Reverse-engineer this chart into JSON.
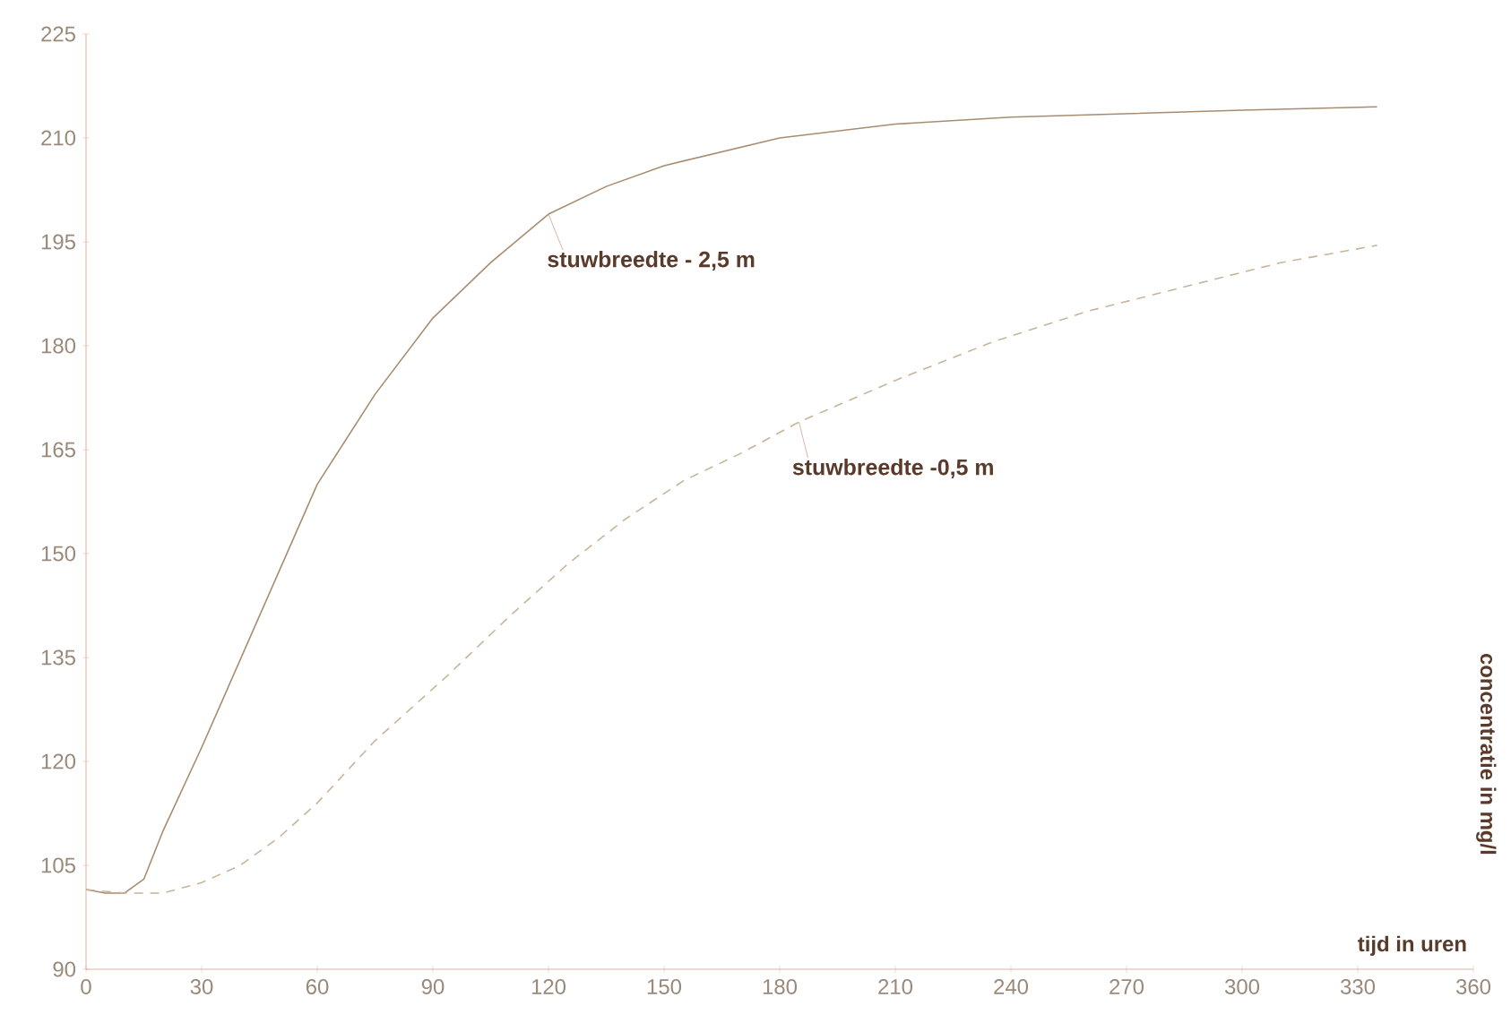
{
  "chart_data": {
    "type": "line",
    "xlabel": "tijd in uren",
    "ylabel": "concentratie in mg/l",
    "xlim": [
      0,
      360
    ],
    "ylim": [
      90,
      225
    ],
    "xticks": [
      0,
      30,
      60,
      90,
      120,
      150,
      180,
      210,
      240,
      270,
      300,
      330,
      360
    ],
    "yticks": [
      90,
      105,
      120,
      135,
      150,
      165,
      180,
      195,
      210,
      225
    ],
    "series": [
      {
        "name": "stuwbreedte - 2,5 m",
        "color": "#a88c70",
        "line_style": "solid",
        "x": [
          0,
          5,
          10,
          15,
          20,
          30,
          45,
          60,
          75,
          90,
          105,
          120,
          135,
          150,
          180,
          210,
          240,
          270,
          300,
          335
        ],
        "values": [
          101.5,
          101,
          101,
          103,
          110,
          122,
          141,
          160,
          173,
          184,
          192,
          199,
          203,
          206,
          210,
          212,
          213,
          213.5,
          214,
          214.5
        ]
      },
      {
        "name": "stuwbreedte -0,5 m",
        "color": "#c8b49a",
        "line_style": "dashed",
        "x": [
          0,
          10,
          20,
          30,
          40,
          50,
          60,
          75,
          94,
          110,
          125,
          140,
          155,
          170,
          185,
          210,
          235,
          260,
          285,
          310,
          335
        ],
        "values": [
          101.5,
          101,
          101,
          102.5,
          105,
          109,
          114,
          123,
          132.5,
          141,
          148.5,
          155,
          160.5,
          164.5,
          169,
          175,
          180.5,
          185,
          188.5,
          192,
          194.5
        ]
      }
    ]
  }
}
